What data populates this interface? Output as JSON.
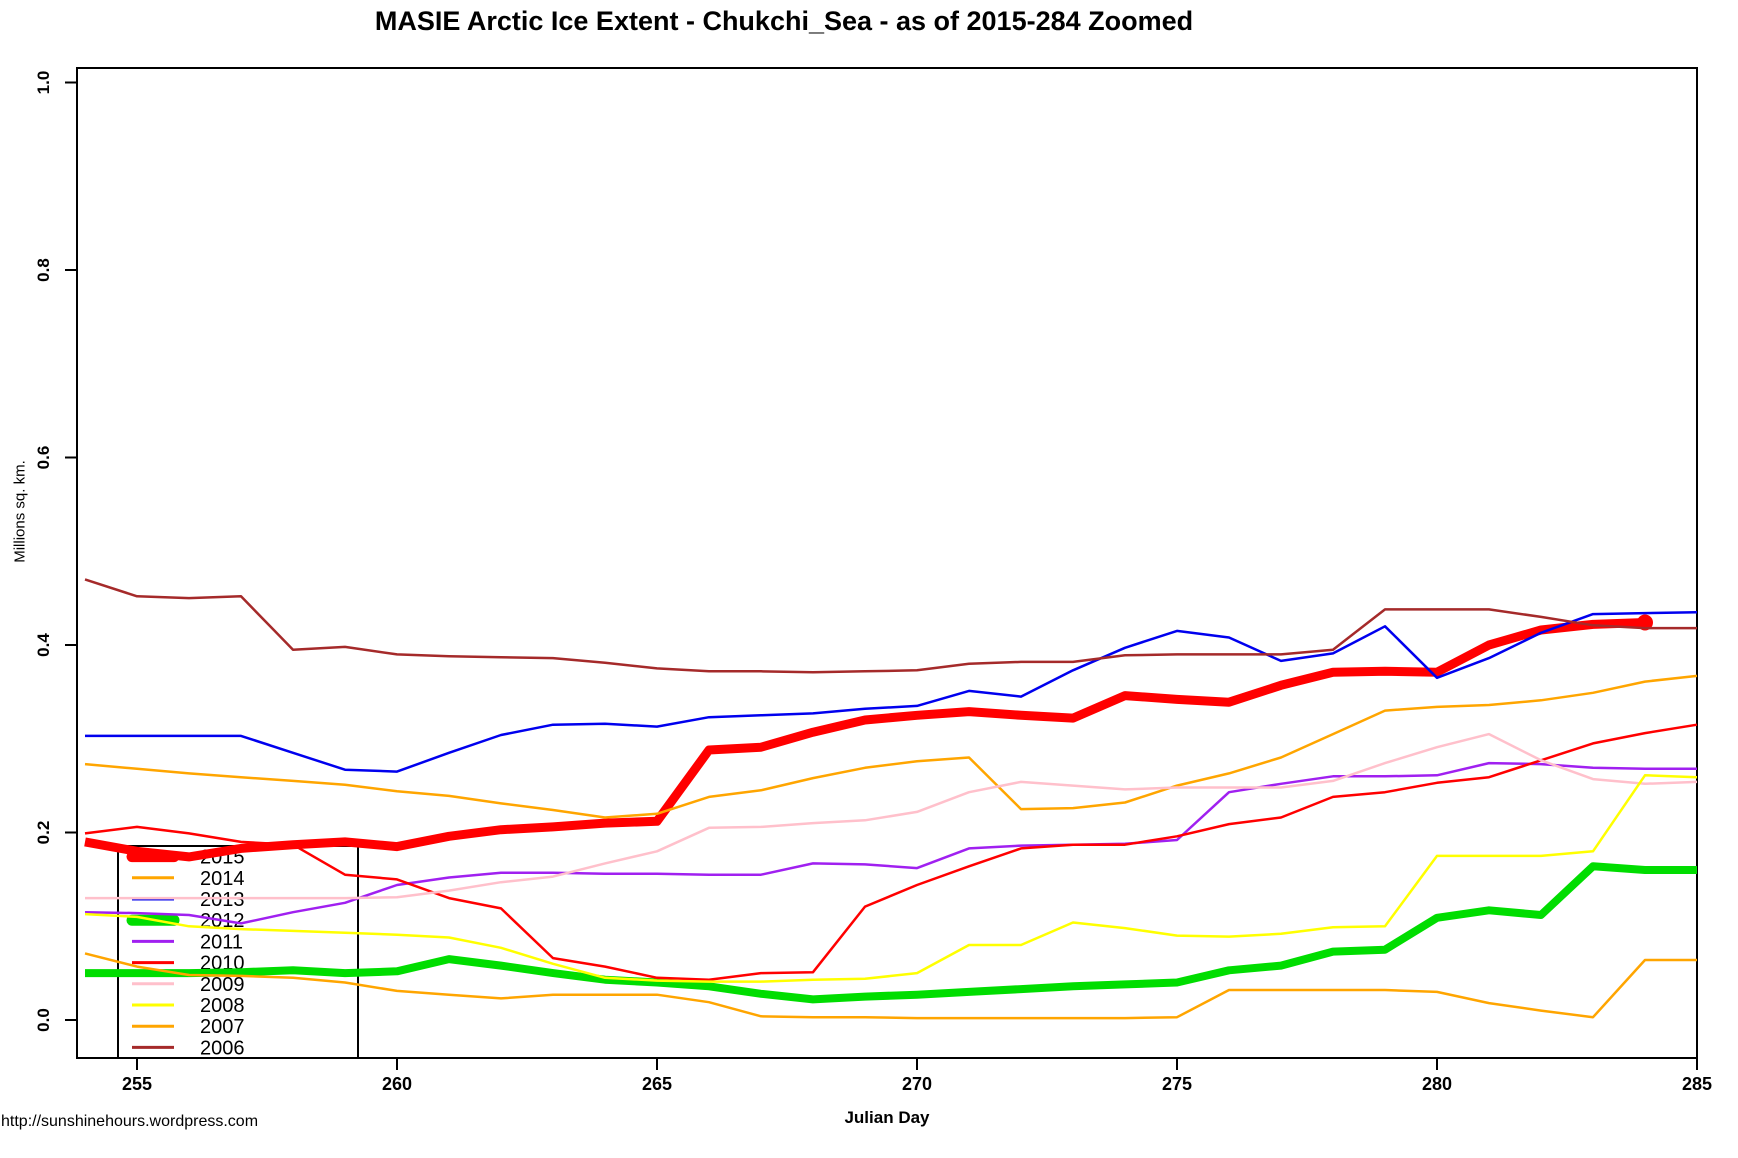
{
  "page": {
    "title": "MASIE Arctic Ice Extent - Chukchi_Sea - as of 2015-284 Zoomed",
    "footer": "http://sunshinehours.wordpress.com"
  },
  "chart_data": {
    "type": "line",
    "title": "MASIE Arctic Ice Extent - Chukchi_Sea - as of 2015-284 Zoomed",
    "xlabel": "Julian Day",
    "ylabel": "Millions sq. km.",
    "xlim": [
      254,
      285
    ],
    "ylim": [
      0.0,
      1.0
    ],
    "x_ticks": [
      255,
      260,
      265,
      270,
      275,
      280,
      285
    ],
    "y_ticks": [
      "0.0",
      "0.2",
      "0.4",
      "0.6",
      "0.8",
      "1.0"
    ],
    "grid": false,
    "legend_position": "bottom-left",
    "axis_color": "#000000",
    "days": [
      254,
      255,
      256,
      257,
      258,
      259,
      260,
      261,
      262,
      263,
      264,
      265,
      266,
      267,
      268,
      269,
      270,
      271,
      272,
      273,
      274,
      275,
      276,
      277,
      278,
      279,
      280,
      281,
      282,
      283,
      284,
      285
    ],
    "series": [
      {
        "name": "2015",
        "color": "#FF0000",
        "width": 9,
        "end_dot": true,
        "values": [
          0.19,
          0.18,
          0.174,
          0.183,
          0.187,
          0.19,
          0.185,
          0.196,
          0.203,
          0.206,
          0.21,
          0.212,
          0.288,
          0.291,
          0.307,
          0.32,
          0.325,
          0.329,
          0.325,
          0.322,
          0.346,
          0.342,
          0.339,
          0.357,
          0.371,
          0.372,
          0.371,
          0.4,
          0.416,
          0.422,
          0.424,
          null
        ]
      },
      {
        "name": "2014",
        "color": "#FFA500",
        "width": 2.5,
        "values": [
          0.273,
          0.268,
          0.263,
          0.259,
          0.255,
          0.251,
          0.244,
          0.239,
          0.231,
          0.224,
          0.216,
          0.22,
          0.238,
          0.245,
          0.258,
          0.269,
          0.276,
          0.28,
          0.225,
          0.226,
          0.232,
          0.25,
          0.263,
          0.28,
          0.305,
          0.33,
          0.334,
          0.336,
          0.341,
          0.349,
          0.361,
          0.367
        ]
      },
      {
        "name": "2013",
        "color": "#0000EE",
        "width": 2.5,
        "values": [
          0.303,
          0.303,
          0.303,
          0.303,
          0.285,
          0.267,
          0.265,
          0.285,
          0.304,
          0.315,
          0.316,
          0.313,
          0.323,
          0.325,
          0.327,
          0.332,
          0.335,
          0.351,
          0.345,
          0.373,
          0.397,
          0.415,
          0.408,
          0.383,
          0.391,
          0.42,
          0.365,
          0.386,
          0.413,
          0.433,
          0.434,
          0.435
        ]
      },
      {
        "name": "2012",
        "color": "#00DD00",
        "width": 8,
        "values": [
          0.05,
          0.05,
          0.05,
          0.051,
          0.053,
          0.05,
          0.052,
          0.065,
          0.058,
          0.05,
          0.043,
          0.04,
          0.036,
          0.028,
          0.022,
          0.025,
          0.027,
          0.03,
          0.033,
          0.036,
          0.038,
          0.04,
          0.053,
          0.058,
          0.073,
          0.075,
          0.109,
          0.117,
          0.112,
          0.164,
          0.16,
          0.16
        ]
      },
      {
        "name": "2011",
        "color": "#A020F0",
        "width": 2.5,
        "values": [
          0.115,
          0.114,
          0.112,
          0.103,
          0.115,
          0.125,
          0.144,
          0.152,
          0.157,
          0.157,
          0.156,
          0.156,
          0.155,
          0.155,
          0.167,
          0.166,
          0.162,
          0.183,
          0.186,
          0.187,
          0.188,
          0.192,
          0.243,
          0.252,
          0.26,
          0.26,
          0.261,
          0.274,
          0.273,
          0.269,
          0.268,
          0.268
        ]
      },
      {
        "name": "2010",
        "color": "#FF0000",
        "width": 2.5,
        "values": [
          0.199,
          0.206,
          0.199,
          0.19,
          0.187,
          0.155,
          0.15,
          0.13,
          0.119,
          0.066,
          0.057,
          0.045,
          0.043,
          0.05,
          0.051,
          0.121,
          0.144,
          0.164,
          0.183,
          0.187,
          0.187,
          0.196,
          0.209,
          0.216,
          0.238,
          0.243,
          0.253,
          0.259,
          0.277,
          0.295,
          0.306,
          0.315
        ]
      },
      {
        "name": "2009",
        "color": "#FFC0CB",
        "width": 2.5,
        "values": [
          0.13,
          0.13,
          0.13,
          0.13,
          0.13,
          0.13,
          0.131,
          0.138,
          0.147,
          0.153,
          0.167,
          0.18,
          0.205,
          0.206,
          0.21,
          0.213,
          0.222,
          0.243,
          0.254,
          0.25,
          0.246,
          0.248,
          0.248,
          0.248,
          0.255,
          0.274,
          0.291,
          0.305,
          0.277,
          0.257,
          0.252,
          0.254
        ]
      },
      {
        "name": "2008",
        "color": "#FFFF00",
        "width": 2.5,
        "values": [
          0.113,
          0.11,
          0.1,
          0.097,
          0.095,
          0.093,
          0.091,
          0.088,
          0.077,
          0.06,
          0.045,
          0.042,
          0.041,
          0.041,
          0.043,
          0.044,
          0.05,
          0.08,
          0.08,
          0.104,
          0.098,
          0.09,
          0.089,
          0.092,
          0.099,
          0.1,
          0.175,
          0.175,
          0.175,
          0.18,
          0.261,
          0.259
        ]
      },
      {
        "name": "2007",
        "color": "#FFA500",
        "width": 2.5,
        "values": [
          0.071,
          0.057,
          0.048,
          0.047,
          0.045,
          0.04,
          0.031,
          0.027,
          0.023,
          0.027,
          0.027,
          0.027,
          0.019,
          0.004,
          0.003,
          0.003,
          0.002,
          0.002,
          0.002,
          0.002,
          0.002,
          0.003,
          0.032,
          0.032,
          0.032,
          0.032,
          0.03,
          0.018,
          0.01,
          0.003,
          0.064,
          0.064
        ]
      },
      {
        "name": "2006",
        "color": "#A52A2A",
        "width": 2.5,
        "values": [
          0.47,
          0.452,
          0.45,
          0.452,
          0.395,
          0.398,
          0.39,
          0.388,
          0.387,
          0.386,
          0.381,
          0.375,
          0.372,
          0.372,
          0.371,
          0.372,
          0.373,
          0.38,
          0.382,
          0.382,
          0.389,
          0.39,
          0.39,
          0.39,
          0.395,
          0.438,
          0.438,
          0.438,
          0.43,
          0.421,
          0.418,
          0.418
        ]
      }
    ]
  }
}
